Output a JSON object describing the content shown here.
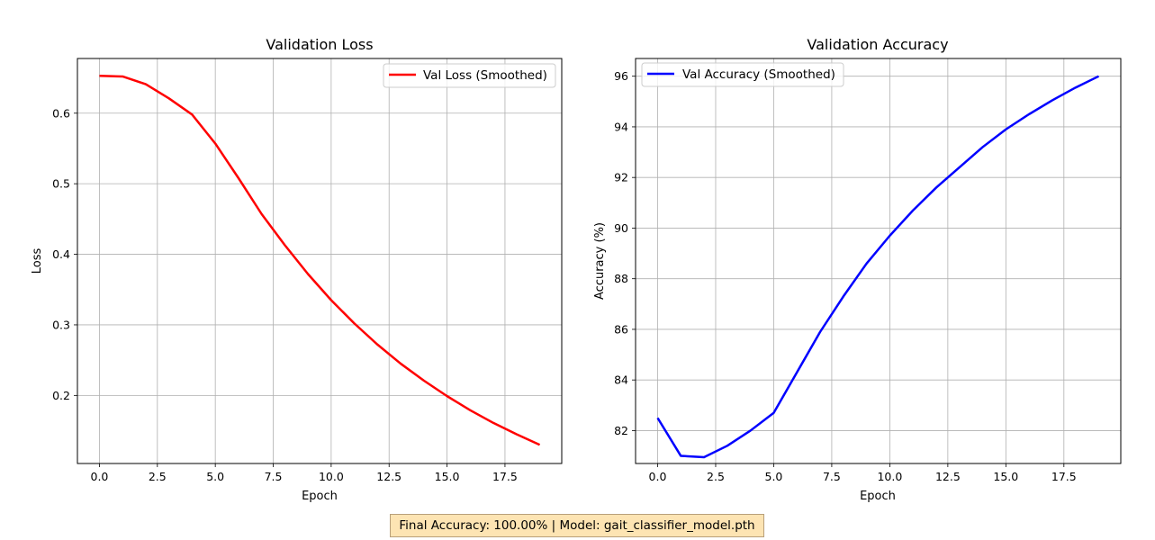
{
  "chart_data": [
    {
      "type": "line",
      "title": "Validation Loss",
      "xlabel": "Epoch",
      "ylabel": "Loss",
      "xlim": [
        -0.95,
        19.95
      ],
      "ylim": [
        0.1035,
        0.6775
      ],
      "xticks": [
        0.0,
        2.5,
        5.0,
        7.5,
        10.0,
        12.5,
        15.0,
        17.5
      ],
      "xtick_labels": [
        "0.0",
        "2.5",
        "5.0",
        "7.5",
        "10.0",
        "12.5",
        "15.0",
        "17.5"
      ],
      "yticks": [
        0.2,
        0.3,
        0.4,
        0.5,
        0.6
      ],
      "ytick_labels": [
        "0.2",
        "0.3",
        "0.4",
        "0.5",
        "0.6"
      ],
      "grid": true,
      "legend_position": "upper-right",
      "series": [
        {
          "name": "Val Loss (Smoothed)",
          "color": "#ff0000",
          "x": [
            0,
            1,
            2,
            3,
            4,
            5,
            6,
            7,
            8,
            9,
            10,
            11,
            12,
            13,
            14,
            15,
            16,
            17,
            18,
            19
          ],
          "y": [
            0.653,
            0.652,
            0.641,
            0.621,
            0.598,
            0.557,
            0.508,
            0.457,
            0.413,
            0.372,
            0.335,
            0.302,
            0.272,
            0.245,
            0.221,
            0.199,
            0.179,
            0.161,
            0.145,
            0.13
          ]
        }
      ]
    },
    {
      "type": "line",
      "title": "Validation Accuracy",
      "xlabel": "Epoch",
      "ylabel": "Accuracy (%)",
      "xlim": [
        -0.95,
        19.95
      ],
      "ylim": [
        80.7,
        96.7
      ],
      "xticks": [
        0.0,
        2.5,
        5.0,
        7.5,
        10.0,
        12.5,
        15.0,
        17.5
      ],
      "xtick_labels": [
        "0.0",
        "2.5",
        "5.0",
        "7.5",
        "10.0",
        "12.5",
        "15.0",
        "17.5"
      ],
      "yticks": [
        82,
        84,
        86,
        88,
        90,
        92,
        94,
        96
      ],
      "ytick_labels": [
        "82",
        "84",
        "86",
        "88",
        "90",
        "92",
        "94",
        "96"
      ],
      "grid": true,
      "legend_position": "upper-left",
      "series": [
        {
          "name": "Val Accuracy (Smoothed)",
          "color": "#0000ff",
          "x": [
            0,
            1,
            2,
            3,
            4,
            5,
            6,
            7,
            8,
            9,
            10,
            11,
            12,
            13,
            14,
            15,
            16,
            17,
            18,
            19
          ],
          "y": [
            82.5,
            81.0,
            80.95,
            81.4,
            82.0,
            82.7,
            84.3,
            85.9,
            87.3,
            88.6,
            89.7,
            90.7,
            91.6,
            92.4,
            93.2,
            93.9,
            94.5,
            95.05,
            95.55,
            96.0
          ]
        }
      ]
    }
  ],
  "footer": {
    "text": "Final Accuracy: 100.00% | Model: gait_classifier_model.pth"
  }
}
